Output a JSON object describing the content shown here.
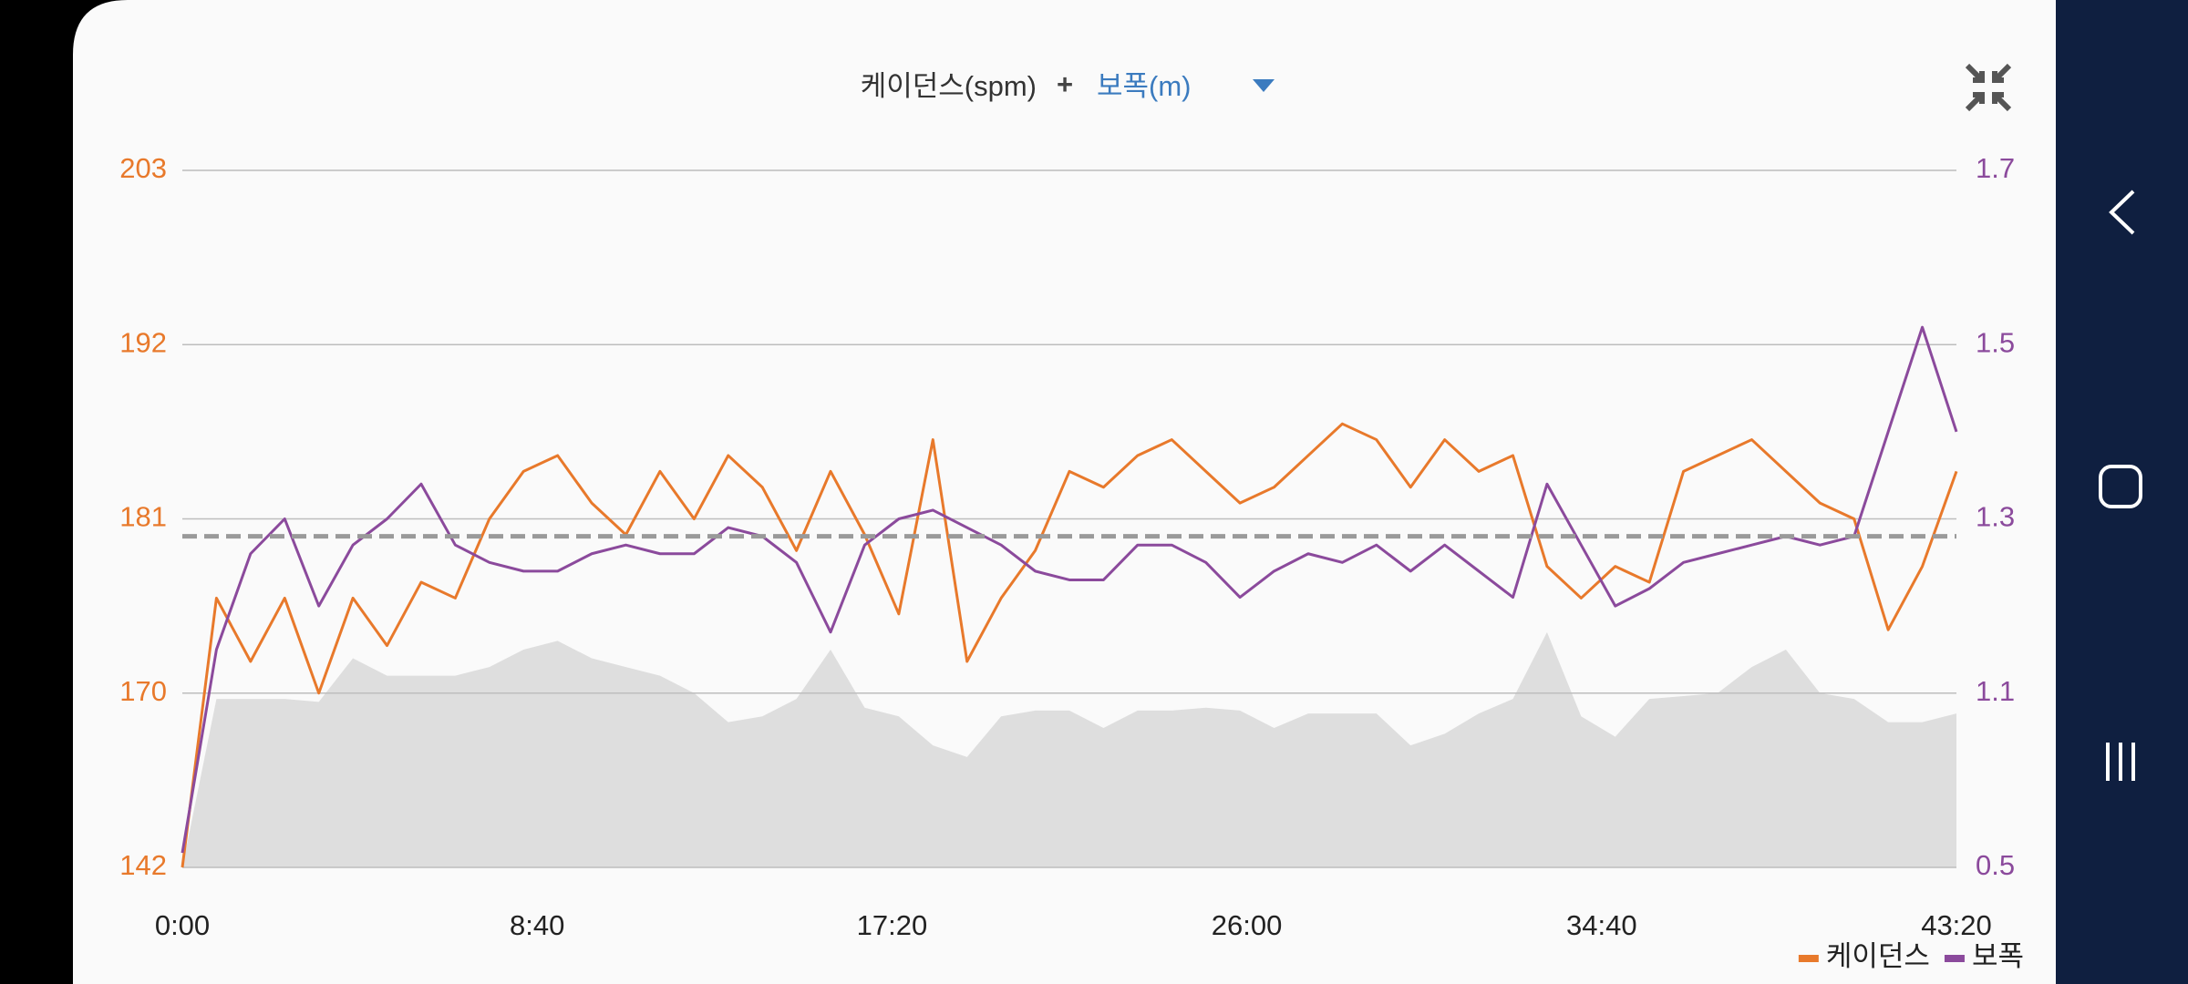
{
  "chart_data": {
    "type": "line",
    "title_left": "케이던스(spm)",
    "title_plus": "+",
    "title_right": "보폭(m)",
    "x": [
      0,
      50,
      100,
      150,
      200,
      250,
      300,
      350,
      400,
      450,
      500,
      550,
      600,
      650,
      700,
      750,
      800,
      850,
      900,
      950,
      1000,
      1050,
      1100,
      1150,
      1200,
      1250,
      1300,
      1350,
      1400,
      1450,
      1500,
      1550,
      1600,
      1650,
      1700,
      1750,
      1800,
      1850,
      1900,
      1950,
      2000,
      2050,
      2100,
      2150,
      2200,
      2250,
      2300,
      2350,
      2400,
      2450,
      2500,
      2550,
      2600
    ],
    "xlim": [
      0,
      2600
    ],
    "xticks": [
      {
        "value": 0,
        "label": "0:00"
      },
      {
        "value": 520,
        "label": "8:40"
      },
      {
        "value": 1040,
        "label": "17:20"
      },
      {
        "value": 1560,
        "label": "26:00"
      },
      {
        "value": 2080,
        "label": "34:40"
      },
      {
        "value": 2600,
        "label": "43:20"
      }
    ],
    "ylim": [
      142,
      203
    ],
    "yticks": [
      142,
      170,
      181,
      192,
      203
    ],
    "y2lim": [
      0.5,
      1.7
    ],
    "y2ticks": [
      0.5,
      1.1,
      1.3,
      1.5,
      1.7
    ],
    "grid": true,
    "legend": "bottom-right",
    "average": 179.9,
    "average_color": "#9a9a9a",
    "area": {
      "color": "#dedede",
      "axis": "y2",
      "values": [
        0.5,
        1.08,
        1.08,
        1.08,
        1.07,
        1.14,
        1.12,
        1.12,
        1.12,
        1.13,
        1.15,
        1.16,
        1.14,
        1.13,
        1.12,
        1.1,
        1.0,
        1.02,
        1.08,
        1.15,
        1.05,
        1.02,
        0.92,
        0.88,
        1.02,
        1.04,
        1.04,
        0.98,
        1.04,
        1.04,
        1.05,
        1.04,
        0.98,
        1.03,
        1.03,
        1.03,
        0.92,
        0.96,
        1.03,
        1.08,
        1.17,
        1.02,
        0.95,
        1.08,
        1.09,
        1.1,
        1.13,
        1.15,
        1.1,
        1.08,
        1.0,
        1.0,
        1.03
      ]
    },
    "series": [
      {
        "name": "케이던스",
        "color": "#e8792b",
        "values": [
          142,
          176,
          172,
          176,
          170,
          176,
          173,
          177,
          176,
          181,
          184,
          185,
          182,
          180,
          184,
          181,
          185,
          183,
          179,
          184,
          180,
          175,
          186,
          172,
          176,
          179,
          184,
          183,
          185,
          186,
          184,
          182,
          183,
          185,
          187,
          186,
          183,
          186,
          184,
          185,
          178,
          176,
          178,
          177,
          184,
          185,
          186,
          184,
          182,
          181,
          174,
          178,
          184
        ]
      },
      {
        "name": "보폭",
        "color": "#8b4a9c",
        "axis": "y2",
        "values": [
          0.55,
          1.15,
          1.26,
          1.3,
          1.2,
          1.27,
          1.3,
          1.34,
          1.27,
          1.25,
          1.24,
          1.24,
          1.26,
          1.27,
          1.26,
          1.26,
          1.29,
          1.28,
          1.25,
          1.17,
          1.27,
          1.3,
          1.31,
          1.29,
          1.27,
          1.24,
          1.23,
          1.23,
          1.27,
          1.27,
          1.25,
          1.21,
          1.24,
          1.26,
          1.25,
          1.27,
          1.24,
          1.27,
          1.24,
          1.21,
          1.34,
          1.27,
          1.2,
          1.22,
          1.25,
          1.26,
          1.27,
          1.28,
          1.27,
          1.28,
          1.4,
          1.52,
          1.4
        ]
      }
    ]
  }
}
